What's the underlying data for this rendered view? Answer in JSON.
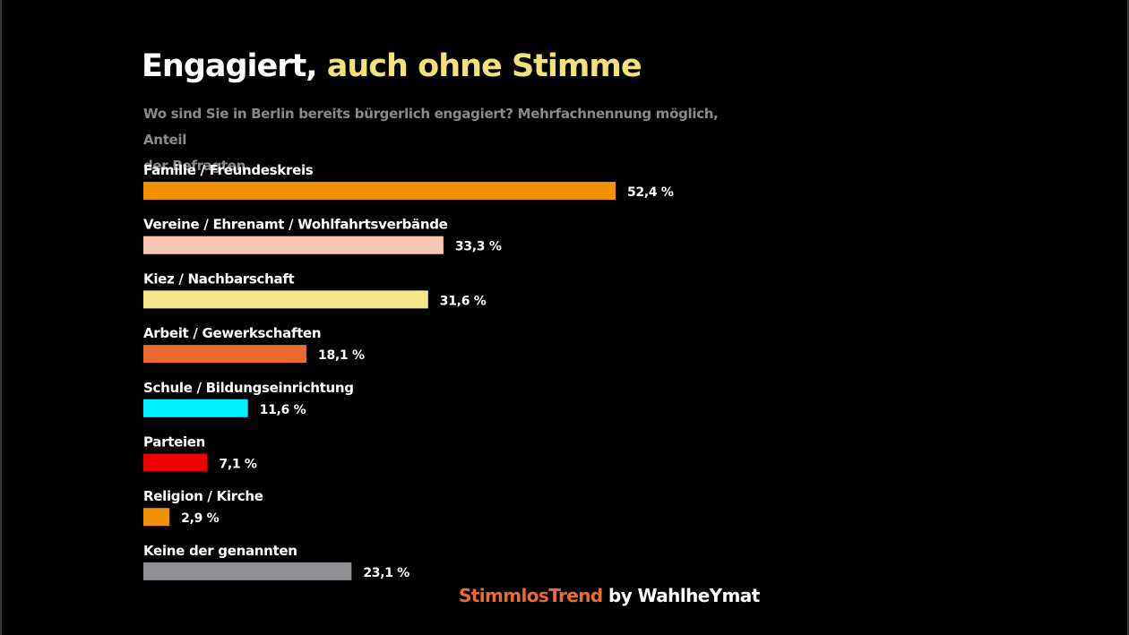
{
  "header": {
    "title_part1": "Engagiert,",
    "title_part2": "auch ohne Stimme",
    "subtitle_line1": "Wo sind Sie in Berlin bereits bürgerlich engagiert? Mehrfachnennung möglich, Anteil",
    "subtitle_line2": "der Befragten."
  },
  "colors": {
    "background": "#000000",
    "title_accent": "#f2e27a",
    "subtitle": "#8a8a8a",
    "brand": "#ee6a2e"
  },
  "chart_data": {
    "type": "bar",
    "orientation": "horizontal",
    "title": "Engagiert, auch ohne Stimme",
    "subtitle": "Wo sind Sie in Berlin bereits bürgerlich engagiert? Mehrfachnennung möglich, Anteil der Befragten.",
    "categories": [
      "Familie / Freundeskreis",
      "Vereine / Ehrenamt / Wohlfahrtsverbände",
      "Kiez / Nachbarschaft",
      "Arbeit / Gewerkschaften",
      "Schule / Bildungseinrichtung",
      "Parteien",
      "Religion / Kirche",
      "Keine der genannten"
    ],
    "values": [
      52.4,
      33.3,
      31.6,
      18.1,
      11.6,
      7.1,
      2.9,
      23.1
    ],
    "value_labels": [
      "52,4 %",
      "33,3 %",
      "31,6 %",
      "18,1 %",
      "11,6 %",
      "7,1 %",
      "2,9 %",
      "23,1 %"
    ],
    "bar_colors": [
      "#f29100",
      "#f8c8b2",
      "#f2e88a",
      "#ea6a30",
      "#00f0ff",
      "#ee0000",
      "#f29100",
      "#8f8f94"
    ],
    "xlabel": "",
    "ylabel": "",
    "xlim": [
      0,
      52.4
    ],
    "grid": false
  },
  "footer": {
    "brand": "StimmlosTrend",
    "by": "by WahlheYmat"
  }
}
